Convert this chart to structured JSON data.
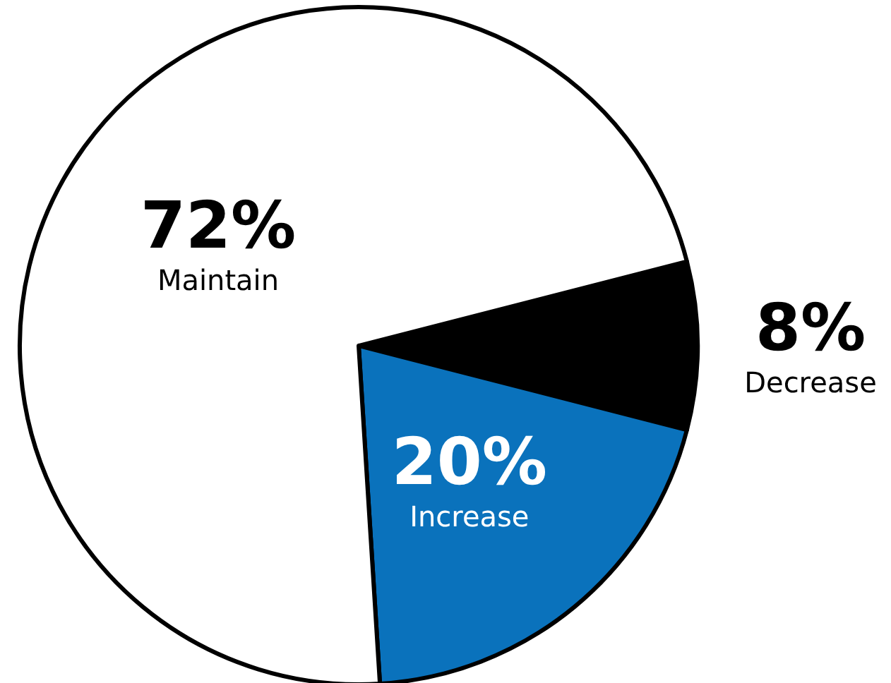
{
  "chart_data": {
    "type": "pie",
    "categories": [
      "Decrease",
      "Increase",
      "Maintain"
    ],
    "values": [
      8,
      20,
      72
    ],
    "value_labels": [
      "8%",
      "20%",
      "72%"
    ],
    "colors": [
      "#000000",
      "#0a72bc",
      "#ffffff"
    ],
    "legend": false
  }
}
